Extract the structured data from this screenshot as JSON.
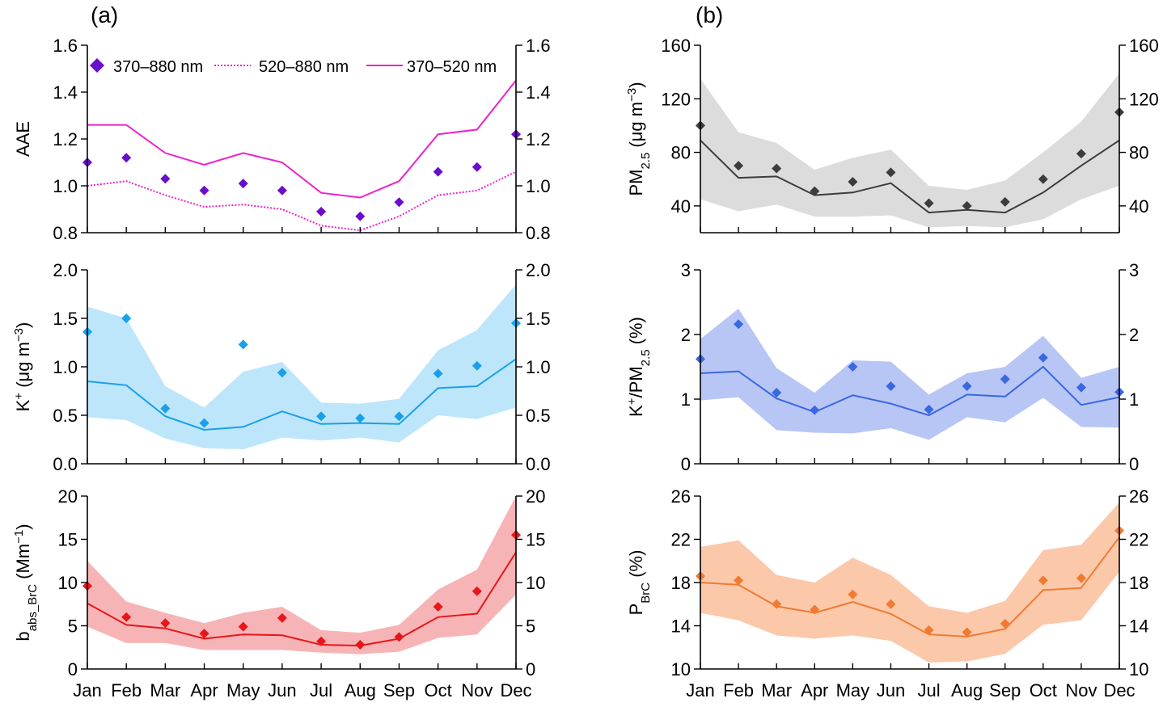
{
  "panel_labels": [
    "(a)",
    "(b)"
  ],
  "months": [
    "Jan",
    "Feb",
    "Mar",
    "Apr",
    "May",
    "Jun",
    "Jul",
    "Aug",
    "Sep",
    "Oct",
    "Nov",
    "Dec"
  ],
  "chart_data": [
    {
      "id": "aae",
      "column": 0,
      "row": 0,
      "type": "line",
      "ylabel": "AAE",
      "ylim": [
        0.8,
        1.6
      ],
      "ticks": [
        0.8,
        1.0,
        1.2,
        1.4,
        1.6
      ],
      "decimals": 1,
      "color": "#6a0dcc",
      "line_color": "#ee20cc",
      "legend": {
        "placement": "top",
        "entries": [
          "370–880 nm",
          "520–880 nm",
          "370–520 nm"
        ]
      },
      "series": [
        {
          "name": "370–880 nm",
          "style": "marker",
          "color": "#6a0dcc",
          "values": [
            1.1,
            1.12,
            1.03,
            0.98,
            1.01,
            0.98,
            0.89,
            0.87,
            0.93,
            1.06,
            1.08,
            1.22
          ]
        },
        {
          "name": "520–880 nm",
          "style": "dotted",
          "color": "#ee20cc",
          "values": [
            1.0,
            1.02,
            0.96,
            0.91,
            0.92,
            0.9,
            0.83,
            0.81,
            0.87,
            0.96,
            0.98,
            1.06
          ]
        },
        {
          "name": "370–520 nm",
          "style": "solid",
          "color": "#ee20cc",
          "values": [
            1.26,
            1.26,
            1.14,
            1.09,
            1.14,
            1.1,
            0.97,
            0.95,
            1.02,
            1.22,
            1.24,
            1.45
          ]
        }
      ]
    },
    {
      "id": "k",
      "column": 0,
      "row": 1,
      "type": "area",
      "ylabel": {
        "base": "K",
        "sup1": "+",
        "rest": " (μg m",
        "sup2": "−3",
        "end": ")"
      },
      "ylim": [
        0,
        2
      ],
      "ticks": [
        0,
        0.5,
        1.0,
        1.5,
        2.0
      ],
      "decimals": 1,
      "color": "#1aa0e8",
      "band_color": "#bde6fb",
      "median": [
        0.85,
        0.81,
        0.49,
        0.35,
        0.38,
        0.54,
        0.41,
        0.42,
        0.41,
        0.78,
        0.8,
        1.08
      ],
      "lower": [
        0.48,
        0.45,
        0.26,
        0.16,
        0.15,
        0.27,
        0.24,
        0.27,
        0.22,
        0.5,
        0.46,
        0.58
      ],
      "upper": [
        1.62,
        1.5,
        0.8,
        0.58,
        0.95,
        1.05,
        0.63,
        0.62,
        0.67,
        1.17,
        1.38,
        1.85
      ],
      "mean": [
        1.36,
        1.5,
        0.57,
        0.42,
        1.23,
        0.94,
        0.49,
        0.47,
        0.49,
        0.93,
        1.01,
        1.45
      ]
    },
    {
      "id": "babs",
      "column": 0,
      "row": 2,
      "type": "area",
      "ylabel": {
        "base": "b",
        "sub": "abs_BrC",
        "rest": " (Mm",
        "sup": "−1",
        "end": ")"
      },
      "ylim": [
        0,
        20
      ],
      "ticks": [
        0,
        5,
        10,
        15,
        20
      ],
      "decimals": 0,
      "color": "#e8161a",
      "band_color": "#f7b4b6",
      "median": [
        7.6,
        5.1,
        4.7,
        3.5,
        4.0,
        3.9,
        2.8,
        2.7,
        3.5,
        6.0,
        6.4,
        13.5
      ],
      "lower": [
        4.9,
        3.0,
        3.0,
        2.2,
        2.2,
        2.2,
        1.9,
        1.7,
        2.0,
        3.6,
        4.0,
        8.6
      ],
      "upper": [
        12.5,
        7.8,
        6.5,
        5.3,
        6.5,
        7.2,
        4.5,
        4.2,
        5.1,
        9.2,
        11.5,
        20.0
      ],
      "mean": [
        9.6,
        6.0,
        5.3,
        4.1,
        4.9,
        5.9,
        3.2,
        2.8,
        3.7,
        7.2,
        9.0,
        15.5
      ]
    },
    {
      "id": "pm25",
      "column": 1,
      "row": 0,
      "type": "area",
      "ylabel": {
        "base": "PM",
        "sub": "2.5",
        "rest": " (μg m",
        "sup": "−3",
        "end": ")"
      },
      "ylim": [
        20,
        160
      ],
      "ticks": [
        40,
        80,
        120,
        160
      ],
      "decimals": 0,
      "color": "#3c3c3c",
      "band_color": "#dcdcdc",
      "median": [
        89,
        61,
        62,
        48,
        50,
        57,
        35,
        37,
        35,
        50,
        70,
        89
      ],
      "lower": [
        45,
        36,
        41,
        32,
        32,
        33,
        24,
        25,
        24,
        30,
        45,
        55
      ],
      "upper": [
        135,
        95,
        87,
        67,
        76,
        82,
        55,
        52,
        59,
        80,
        103,
        139
      ],
      "mean": [
        100,
        70,
        68,
        51,
        58,
        65,
        42,
        40,
        43,
        60,
        79,
        110
      ]
    },
    {
      "id": "kpm",
      "column": 1,
      "row": 1,
      "type": "area",
      "ylabel": {
        "base": "K",
        "sup1": "+",
        "rest": "/PM",
        "sub": "2.5",
        "end": " (%)"
      },
      "ylim": [
        0,
        3
      ],
      "ticks": [
        0,
        1,
        2,
        3
      ],
      "decimals": 0,
      "color": "#3a68e0",
      "band_color": "#b8c6f5",
      "median": [
        1.4,
        1.43,
        1.01,
        0.8,
        1.06,
        0.93,
        0.75,
        1.07,
        1.04,
        1.5,
        0.91,
        1.03
      ],
      "lower": [
        0.98,
        1.03,
        0.52,
        0.48,
        0.47,
        0.55,
        0.37,
        0.72,
        0.64,
        1.02,
        0.57,
        0.56
      ],
      "upper": [
        1.93,
        2.4,
        1.48,
        1.1,
        1.6,
        1.58,
        1.07,
        1.4,
        1.5,
        1.98,
        1.33,
        1.5
      ],
      "mean": [
        1.62,
        2.16,
        1.1,
        0.83,
        1.5,
        1.2,
        0.84,
        1.2,
        1.31,
        1.64,
        1.18,
        1.11
      ]
    },
    {
      "id": "pbrc",
      "column": 1,
      "row": 2,
      "type": "area",
      "ylabel": {
        "base": "P",
        "sub": "BrC",
        "end": " (%)"
      },
      "ylim": [
        10,
        26
      ],
      "ticks": [
        10,
        14,
        18,
        22,
        26
      ],
      "decimals": 0,
      "color": "#f07a32",
      "band_color": "#fcc8aa",
      "median": [
        18.0,
        17.8,
        15.8,
        15.2,
        16.2,
        15.1,
        13.2,
        13.0,
        13.7,
        17.3,
        17.5,
        22.2
      ],
      "lower": [
        15.2,
        14.5,
        13.1,
        12.8,
        13.1,
        12.6,
        10.6,
        10.7,
        11.4,
        14.1,
        14.5,
        19.0
      ],
      "upper": [
        21.3,
        21.9,
        18.7,
        18.0,
        20.3,
        18.7,
        15.8,
        15.2,
        16.3,
        21.0,
        21.5,
        25.4
      ],
      "mean": [
        18.6,
        18.2,
        16.0,
        15.5,
        16.9,
        16.0,
        13.6,
        13.4,
        14.2,
        18.2,
        18.4,
        22.8
      ]
    }
  ]
}
